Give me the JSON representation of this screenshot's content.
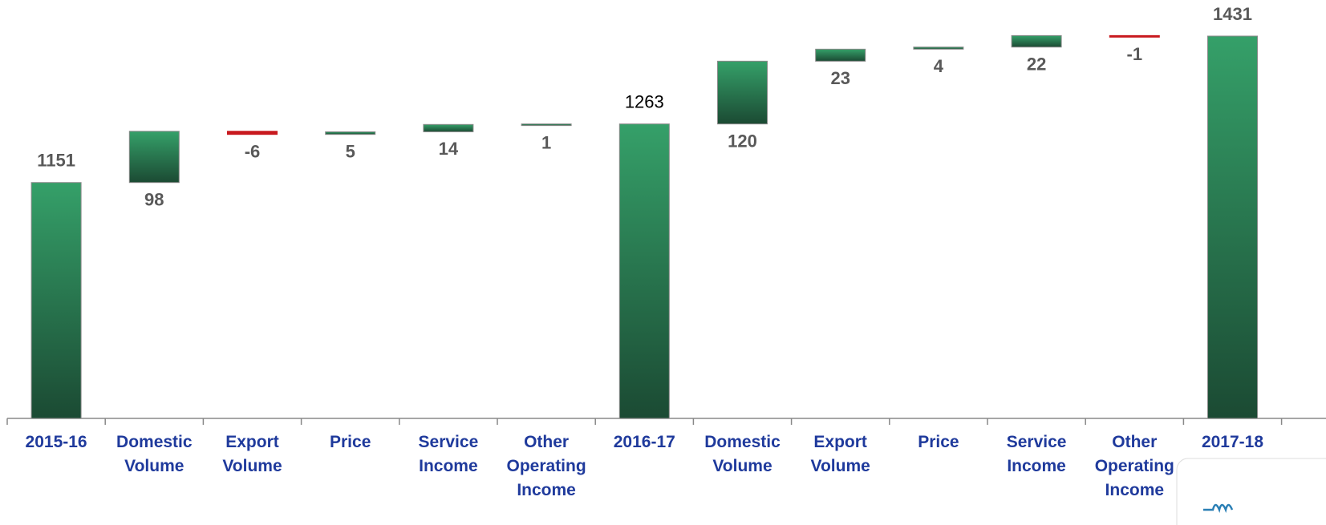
{
  "chart_data": {
    "type": "waterfall",
    "categories": [
      "2015-16",
      "Domestic Volume",
      "Export Volume",
      "Price",
      "Service Income",
      "Other Operating Income",
      "2016-17",
      "Domestic Volume",
      "Export Volume",
      "Price",
      "Service Income",
      "Other Operating Income",
      "2017-18"
    ],
    "values": [
      1151,
      98,
      -6,
      5,
      14,
      1,
      1263,
      120,
      23,
      4,
      22,
      -1,
      1431
    ],
    "measure": [
      "total",
      "relative",
      "relative",
      "relative",
      "relative",
      "relative",
      "total",
      "relative",
      "relative",
      "relative",
      "relative",
      "relative",
      "total"
    ],
    "increase_color": "#2e9563",
    "decrease_color": "#c8191e",
    "total_color": "#2e9563",
    "ylim": [
      700,
      1500
    ],
    "grid": false
  }
}
